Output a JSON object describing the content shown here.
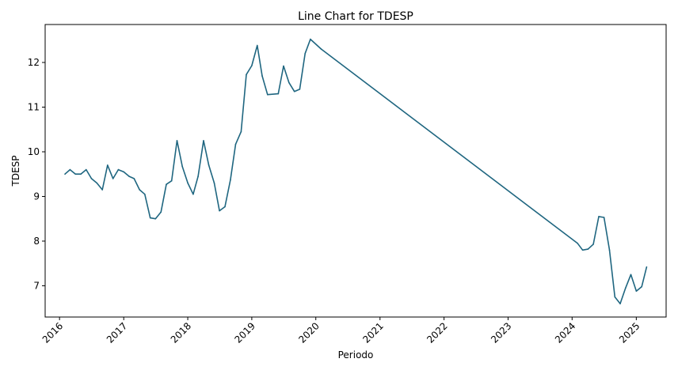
{
  "chart_data": {
    "type": "line",
    "title": "Line Chart for TDESP",
    "xlabel": "Periodo",
    "ylabel": "TDESP",
    "x_ticks": [
      "2016",
      "2017",
      "2018",
      "2019",
      "2020",
      "2021",
      "2022",
      "2023",
      "2024",
      "2025"
    ],
    "y_ticks": [
      "7",
      "8",
      "9",
      "10",
      "11",
      "12"
    ],
    "xlim": [
      "2015-10-11",
      "2025-06-20"
    ],
    "ylim": [
      6.3,
      12.85
    ],
    "grid": false,
    "line_color": "#1f6680",
    "series": [
      {
        "points": [
          [
            "2016-02-01",
            9.5
          ],
          [
            "2016-03-01",
            9.6
          ],
          [
            "2016-04-01",
            9.5
          ],
          [
            "2016-05-01",
            9.5
          ],
          [
            "2016-06-01",
            9.6
          ],
          [
            "2016-07-01",
            9.4
          ],
          [
            "2016-08-01",
            9.3
          ],
          [
            "2016-09-01",
            9.15
          ],
          [
            "2016-10-01",
            9.7
          ],
          [
            "2016-11-01",
            9.4
          ],
          [
            "2016-12-01",
            9.6
          ],
          [
            "2017-01-01",
            9.55
          ],
          [
            "2017-02-01",
            9.45
          ],
          [
            "2017-03-01",
            9.4
          ],
          [
            "2017-04-01",
            9.15
          ],
          [
            "2017-05-01",
            9.05
          ],
          [
            "2017-06-01",
            8.52
          ],
          [
            "2017-07-01",
            8.5
          ],
          [
            "2017-08-01",
            8.65
          ],
          [
            "2017-09-01",
            9.27
          ],
          [
            "2017-10-01",
            9.35
          ],
          [
            "2017-11-01",
            10.25
          ],
          [
            "2017-12-01",
            9.67
          ],
          [
            "2018-01-01",
            9.3
          ],
          [
            "2018-02-01",
            9.05
          ],
          [
            "2018-03-01",
            9.45
          ],
          [
            "2018-04-01",
            10.25
          ],
          [
            "2018-05-01",
            9.7
          ],
          [
            "2018-06-01",
            9.3
          ],
          [
            "2018-07-01",
            8.68
          ],
          [
            "2018-08-01",
            8.77
          ],
          [
            "2018-09-01",
            9.37
          ],
          [
            "2018-10-01",
            10.17
          ],
          [
            "2018-11-01",
            10.45
          ],
          [
            "2018-12-01",
            11.73
          ],
          [
            "2019-01-01",
            11.93
          ],
          [
            "2019-02-01",
            12.38
          ],
          [
            "2019-03-01",
            11.7
          ],
          [
            "2019-04-01",
            11.28
          ],
          [
            "2019-06-01",
            11.3
          ],
          [
            "2019-07-01",
            11.92
          ],
          [
            "2019-08-01",
            11.55
          ],
          [
            "2019-09-01",
            11.35
          ],
          [
            "2019-10-01",
            11.4
          ],
          [
            "2019-11-01",
            12.2
          ],
          [
            "2019-12-01",
            12.52
          ],
          [
            "2020-02-01",
            12.3
          ],
          [
            "2024-02-01",
            7.95
          ],
          [
            "2024-03-01",
            7.8
          ],
          [
            "2024-04-01",
            7.82
          ],
          [
            "2024-05-01",
            7.93
          ],
          [
            "2024-06-01",
            8.55
          ],
          [
            "2024-07-01",
            8.53
          ],
          [
            "2024-08-01",
            7.8
          ],
          [
            "2024-09-01",
            6.75
          ],
          [
            "2024-10-01",
            6.6
          ],
          [
            "2024-11-01",
            6.95
          ],
          [
            "2024-12-01",
            7.25
          ],
          [
            "2025-01-01",
            6.88
          ],
          [
            "2025-02-01",
            6.98
          ],
          [
            "2025-03-01",
            7.42
          ]
        ]
      }
    ]
  }
}
